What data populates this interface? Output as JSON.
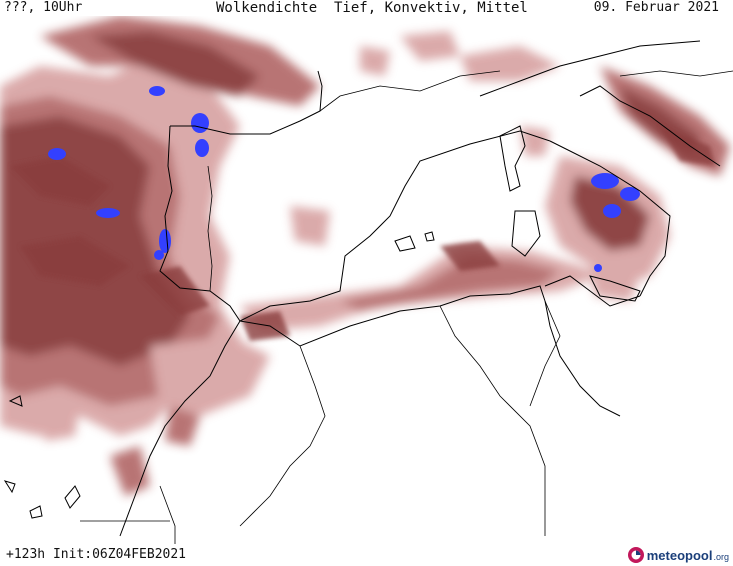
{
  "header": {
    "left": "???, 10Uhr",
    "title": "Wolkendichte  Tief, Konvektiv, Mittel",
    "date": "09. Februar 2021"
  },
  "footer": {
    "run_info": "+123h Init:06Z04FEB2021",
    "brand": "meteopool",
    "brand_tld": ".org"
  },
  "map": {
    "colors": {
      "cloud_light": "#d9a6a6",
      "cloud_medium": "#b56d6d",
      "cloud_dark": "#8a3c3c",
      "convective": "#3340ff",
      "coastline": "#000000",
      "background": "#ffffff"
    }
  }
}
